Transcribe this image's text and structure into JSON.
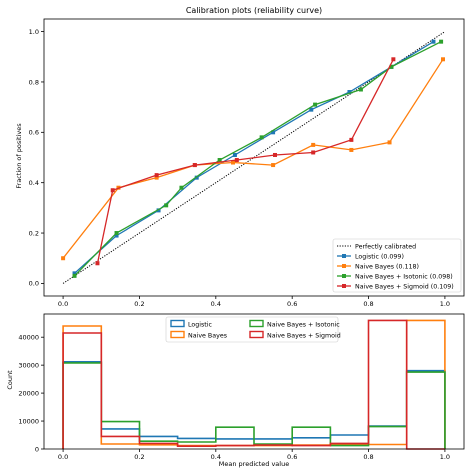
{
  "chart_data": [
    {
      "type": "line",
      "title": "Calibration plots  (reliability curve)",
      "xlabel": "",
      "ylabel": "Fraction of positives",
      "xlim": [
        -0.05,
        1.05
      ],
      "ylim": [
        -0.05,
        1.05
      ],
      "x_ticks": [
        "0.0",
        "0.2",
        "0.4",
        "0.6",
        "0.8",
        "1.0"
      ],
      "y_ticks": [
        "0.0",
        "0.2",
        "0.4",
        "0.6",
        "0.8",
        "1.0"
      ],
      "legend_position": "lower-right",
      "reference": {
        "name": "Perfectly calibrated",
        "x": [
          0,
          1
        ],
        "y": [
          0,
          1
        ],
        "color": "#000000"
      },
      "series": [
        {
          "name": "Logistic (0.099)",
          "color": "#1f77b4",
          "x": [
            0.03,
            0.14,
            0.25,
            0.35,
            0.45,
            0.55,
            0.65,
            0.75,
            0.86,
            0.97
          ],
          "y": [
            0.04,
            0.19,
            0.29,
            0.42,
            0.51,
            0.6,
            0.69,
            0.76,
            0.86,
            0.96
          ]
        },
        {
          "name": "Naive Bayes (0.118)",
          "color": "#ff7f0e",
          "x": [
            0.0,
            0.145,
            0.245,
            0.345,
            0.445,
            0.55,
            0.655,
            0.755,
            0.855,
            0.995
          ],
          "y": [
            0.1,
            0.38,
            0.42,
            0.47,
            0.48,
            0.47,
            0.55,
            0.53,
            0.56,
            0.89
          ]
        },
        {
          "name": "Naive Bayes + Isotonic (0.098)",
          "color": "#2ca02c",
          "x": [
            0.03,
            0.14,
            0.27,
            0.31,
            0.41,
            0.52,
            0.66,
            0.78,
            0.86,
            0.99
          ],
          "y": [
            0.03,
            0.2,
            0.31,
            0.38,
            0.49,
            0.58,
            0.71,
            0.77,
            0.86,
            0.96
          ]
        },
        {
          "name": "Naive Bayes + Sigmoid (0.109)",
          "color": "#d62728",
          "x": [
            0.09,
            0.13,
            0.245,
            0.345,
            0.455,
            0.555,
            0.655,
            0.755,
            0.865
          ],
          "y": [
            0.08,
            0.37,
            0.43,
            0.47,
            0.49,
            0.51,
            0.52,
            0.57,
            0.89
          ]
        }
      ]
    },
    {
      "type": "histogram",
      "title": "",
      "xlabel": "Mean predicted value",
      "ylabel": "Count",
      "xlim": [
        -0.05,
        1.05
      ],
      "ylim": [
        0,
        48300
      ],
      "x_ticks": [
        "0.0",
        "0.2",
        "0.4",
        "0.6",
        "0.8",
        "1.0"
      ],
      "y_ticks": [
        "0",
        "10000",
        "20000",
        "30000",
        "40000"
      ],
      "y_tick_values": [
        0,
        10000,
        20000,
        30000,
        40000
      ],
      "legend_position": "top-center",
      "bin_edges": [
        0,
        0.1,
        0.2,
        0.3,
        0.4,
        0.5,
        0.6,
        0.7,
        0.8,
        0.9,
        1.0
      ],
      "series": [
        {
          "name": "Logistic",
          "color": "#1f77b4",
          "counts": [
            31200,
            7200,
            4500,
            3800,
            3600,
            3600,
            4000,
            5000,
            8200,
            28000
          ]
        },
        {
          "name": "Naive Bayes",
          "color": "#ff7f0e",
          "counts": [
            44000,
            1800,
            1500,
            1200,
            1200,
            1200,
            1400,
            1600,
            1600,
            46000
          ]
        },
        {
          "name": "Naive Bayes + Isotonic",
          "color": "#2ca02c",
          "counts": [
            30800,
            9800,
            2800,
            2500,
            7800,
            1800,
            7800,
            1200,
            8000,
            27500
          ]
        },
        {
          "name": "Naive Bayes + Sigmoid",
          "color": "#d62728",
          "counts": [
            41500,
            4500,
            2000,
            1000,
            1200,
            1400,
            1200,
            2000,
            46000,
            0
          ]
        }
      ]
    }
  ]
}
